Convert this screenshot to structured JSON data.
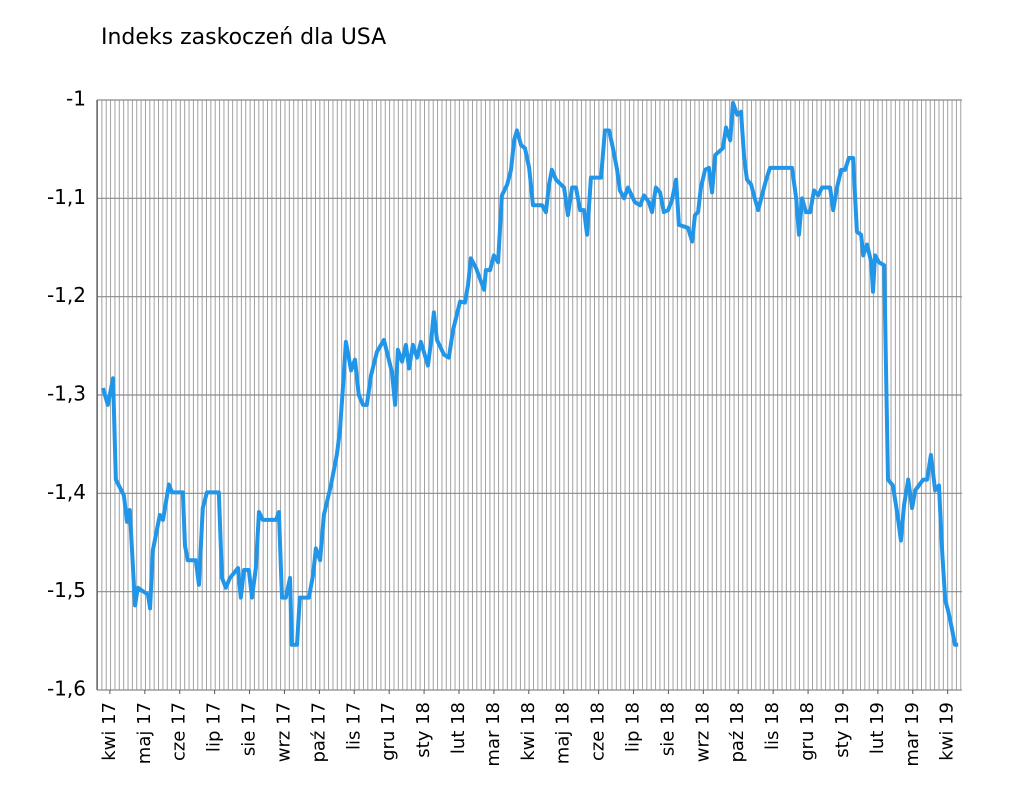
{
  "chart_data": {
    "type": "line",
    "title": "Indeks zaskoczeń dla USA",
    "color": "#2196e8",
    "grid": true,
    "ylim": [
      -1.6,
      -1.0
    ],
    "yticks": [
      {
        "value": -1.6,
        "label": "-1,6"
      },
      {
        "value": -1.5,
        "label": "-1,5"
      },
      {
        "value": -1.4,
        "label": "-1,4"
      },
      {
        "value": -1.3,
        "label": "-1,3"
      },
      {
        "value": -1.2,
        "label": "-1,2"
      },
      {
        "value": -1.1,
        "label": "-1,1"
      },
      {
        "value": -1,
        "label": "-1"
      }
    ],
    "xlim": [
      -0.37,
      24.41
    ],
    "xticks": [
      {
        "value": 0,
        "label": "kwi 17"
      },
      {
        "value": 1,
        "label": "maj 17"
      },
      {
        "value": 2,
        "label": "cze 17"
      },
      {
        "value": 3,
        "label": "lip 17"
      },
      {
        "value": 4,
        "label": "sie 17"
      },
      {
        "value": 5,
        "label": "wrz 17"
      },
      {
        "value": 6,
        "label": "paź 17"
      },
      {
        "value": 7,
        "label": "lis 17"
      },
      {
        "value": 8,
        "label": "gru 17"
      },
      {
        "value": 9,
        "label": "sty 18"
      },
      {
        "value": 10,
        "label": "lut 18"
      },
      {
        "value": 11,
        "label": "mar 18"
      },
      {
        "value": 12,
        "label": "kwi 18"
      },
      {
        "value": 13,
        "label": "maj 18"
      },
      {
        "value": 14,
        "label": "cze 18"
      },
      {
        "value": 15,
        "label": "lip 18"
      },
      {
        "value": 16,
        "label": "sie 18"
      },
      {
        "value": 17,
        "label": "wrz 18"
      },
      {
        "value": 18,
        "label": "paź 18"
      },
      {
        "value": 19,
        "label": "lis 18"
      },
      {
        "value": 20,
        "label": "gru 18"
      },
      {
        "value": 21,
        "label": "sty 19"
      },
      {
        "value": 22,
        "label": "lut 19"
      },
      {
        "value": 23,
        "label": "mar 19"
      },
      {
        "value": 24,
        "label": "kwi 19"
      }
    ],
    "x": [
      -0.2,
      -0.06,
      0.09,
      0.17,
      0.4,
      0.49,
      0.57,
      0.72,
      0.8,
      1.09,
      1.15,
      1.23,
      1.43,
      1.52,
      1.69,
      1.78,
      2.09,
      2.15,
      2.23,
      2.46,
      2.55,
      2.66,
      2.78,
      3.12,
      3.21,
      3.32,
      3.44,
      3.67,
      3.75,
      3.84,
      3.98,
      4.07,
      4.18,
      4.27,
      4.38,
      4.76,
      4.84,
      4.93,
      5.04,
      5.16,
      5.21,
      5.36,
      5.44,
      5.7,
      5.82,
      5.9,
      6.02,
      6.13,
      6.33,
      6.5,
      6.59,
      6.68,
      6.76,
      6.91,
      7.02,
      7.13,
      7.25,
      7.36,
      7.48,
      7.65,
      7.85,
      8.08,
      8.17,
      8.25,
      8.37,
      8.48,
      8.57,
      8.68,
      8.8,
      8.91,
      9.11,
      9.2,
      9.28,
      9.37,
      9.57,
      9.71,
      9.83,
      10.03,
      10.17,
      10.26,
      10.34,
      10.49,
      10.72,
      10.77,
      10.89,
      11.0,
      11.12,
      11.23,
      11.38,
      11.49,
      11.58,
      11.66,
      11.78,
      11.89,
      12.01,
      12.12,
      12.38,
      12.49,
      12.58,
      12.66,
      12.78,
      13.01,
      13.12,
      13.24,
      13.35,
      13.47,
      13.58,
      13.67,
      13.78,
      14.07,
      14.18,
      14.3,
      14.41,
      14.53,
      14.61,
      14.73,
      14.84,
      15.04,
      15.19,
      15.3,
      15.44,
      15.53,
      15.64,
      15.76,
      15.87,
      15.99,
      16.1,
      16.22,
      16.3,
      16.56,
      16.68,
      16.76,
      16.85,
      16.93,
      17.05,
      17.16,
      17.25,
      17.34,
      17.56,
      17.65,
      17.77,
      17.85,
      17.97,
      18.08,
      18.17,
      18.25,
      18.37,
      18.45,
      18.57,
      18.68,
      18.8,
      18.91,
      19.54,
      19.66,
      19.74,
      19.83,
      19.94,
      20.06,
      20.17,
      20.29,
      20.4,
      20.63,
      20.72,
      20.83,
      20.95,
      21.06,
      21.17,
      21.29,
      21.4,
      21.52,
      21.58,
      21.69,
      21.81,
      21.86,
      21.92,
      22.03,
      22.18,
      22.29,
      22.43,
      22.55,
      22.66,
      22.75,
      22.87,
      22.98,
      23.07,
      23.3,
      23.41,
      23.52,
      23.64,
      23.75,
      23.84,
      23.93,
      24.01,
      24.1,
      24.21,
      24.3
    ],
    "values": [
      -1.293,
      -1.31,
      -1.283,
      -1.386,
      -1.402,
      -1.429,
      -1.417,
      -1.514,
      -1.496,
      -1.503,
      -1.517,
      -1.458,
      -1.422,
      -1.427,
      -1.391,
      -1.399,
      -1.399,
      -1.453,
      -1.468,
      -1.468,
      -1.493,
      -1.415,
      -1.399,
      -1.399,
      -1.486,
      -1.496,
      -1.486,
      -1.476,
      -1.506,
      -1.478,
      -1.478,
      -1.506,
      -1.476,
      -1.419,
      -1.427,
      -1.427,
      -1.419,
      -1.506,
      -1.506,
      -1.486,
      -1.554,
      -1.554,
      -1.506,
      -1.506,
      -1.483,
      -1.456,
      -1.468,
      -1.422,
      -1.392,
      -1.361,
      -1.336,
      -1.29,
      -1.246,
      -1.275,
      -1.264,
      -1.3,
      -1.31,
      -1.31,
      -1.28,
      -1.256,
      -1.244,
      -1.277,
      -1.31,
      -1.254,
      -1.266,
      -1.249,
      -1.273,
      -1.249,
      -1.262,
      -1.246,
      -1.27,
      -1.246,
      -1.216,
      -1.244,
      -1.259,
      -1.262,
      -1.234,
      -1.205,
      -1.206,
      -1.188,
      -1.161,
      -1.171,
      -1.193,
      -1.173,
      -1.173,
      -1.158,
      -1.165,
      -1.097,
      -1.086,
      -1.071,
      -1.041,
      -1.031,
      -1.046,
      -1.049,
      -1.069,
      -1.107,
      -1.107,
      -1.114,
      -1.086,
      -1.071,
      -1.081,
      -1.089,
      -1.117,
      -1.089,
      -1.089,
      -1.112,
      -1.112,
      -1.137,
      -1.079,
      -1.079,
      -1.031,
      -1.031,
      -1.049,
      -1.071,
      -1.092,
      -1.1,
      -1.089,
      -1.104,
      -1.107,
      -1.097,
      -1.104,
      -1.114,
      -1.089,
      -1.094,
      -1.114,
      -1.112,
      -1.102,
      -1.081,
      -1.127,
      -1.13,
      -1.144,
      -1.117,
      -1.114,
      -1.089,
      -1.071,
      -1.069,
      -1.094,
      -1.056,
      -1.049,
      -1.028,
      -1.041,
      -1.003,
      -1.015,
      -1.012,
      -1.059,
      -1.081,
      -1.086,
      -1.097,
      -1.112,
      -1.097,
      -1.081,
      -1.069,
      -1.069,
      -1.1,
      -1.137,
      -1.1,
      -1.114,
      -1.114,
      -1.092,
      -1.097,
      -1.089,
      -1.089,
      -1.112,
      -1.089,
      -1.071,
      -1.071,
      -1.059,
      -1.059,
      -1.134,
      -1.137,
      -1.158,
      -1.147,
      -1.165,
      -1.195,
      -1.158,
      -1.165,
      -1.168,
      -1.386,
      -1.392,
      -1.419,
      -1.448,
      -1.412,
      -1.386,
      -1.415,
      -1.397,
      -1.386,
      -1.386,
      -1.361,
      -1.397,
      -1.392,
      -1.458,
      -1.509,
      -1.519,
      -1.534,
      -1.554,
      -1.554
    ]
  }
}
